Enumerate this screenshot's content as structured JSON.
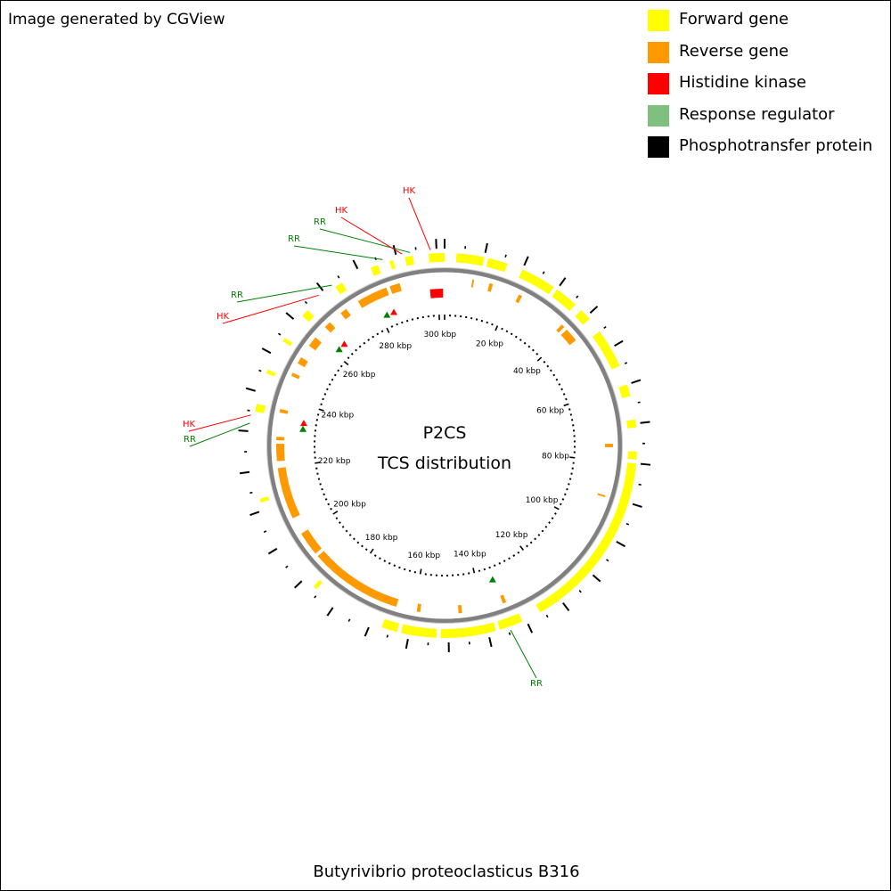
{
  "credit": "Image generated by CGView",
  "organism": "Butyrivibrio proteoclasticus B316",
  "center_title": "P2CS",
  "center_subtitle": "TCS distribution",
  "legend": [
    {
      "label": "Forward gene",
      "color": "#ffff00",
      "key": "forward"
    },
    {
      "label": "Reverse gene",
      "color": "#ff9900",
      "key": "reverse"
    },
    {
      "label": "Histidine kinase",
      "color": "#ff0000",
      "key": "hk"
    },
    {
      "label": "Response regulator",
      "color": "#7fbf7f",
      "key": "rr"
    },
    {
      "label": "Phosphotransfer protein",
      "color": "#000000",
      "key": "hpt"
    }
  ],
  "map": {
    "genome_kbp": 302,
    "ticks": [
      "20 kbp",
      "40 kbp",
      "60 kbp",
      "80 kbp",
      "100 kbp",
      "120 kbp",
      "140 kbp",
      "160 kbp",
      "180 kbp",
      "200 kbp",
      "220 kbp",
      "240 kbp",
      "260 kbp",
      "280 kbp",
      "300 kbp"
    ],
    "backbone_color": "#808080",
    "forward_color": "#ffff00",
    "reverse_color": "#ff9900",
    "hk_color": "#ff0000",
    "rr_color": "#008000",
    "rr_label_color": "#008000",
    "hk_label_color": "#ff0000",
    "feature_labels": [
      {
        "text": "HK",
        "type": "hk",
        "kbp": 298.5
      },
      {
        "text": "RR",
        "type": "rr",
        "kbp": 293.5
      },
      {
        "text": "HK",
        "type": "hk",
        "kbp": 291.5
      },
      {
        "text": "RR",
        "type": "rr",
        "kbp": 286.5
      },
      {
        "text": "RR",
        "type": "rr",
        "kbp": 272.5
      },
      {
        "text": "HK",
        "type": "hk",
        "kbp": 268.5
      },
      {
        "text": "HK",
        "type": "hk",
        "kbp": 234
      },
      {
        "text": "RR",
        "type": "rr",
        "kbp": 232
      },
      {
        "text": "RR",
        "type": "rr",
        "kbp": 134.5
      }
    ],
    "hk_markers_kbp": [
      300,
      284.5,
      264.5,
      234
    ],
    "rr_markers_kbp": [
      282,
      262,
      232,
      134.5
    ]
  }
}
